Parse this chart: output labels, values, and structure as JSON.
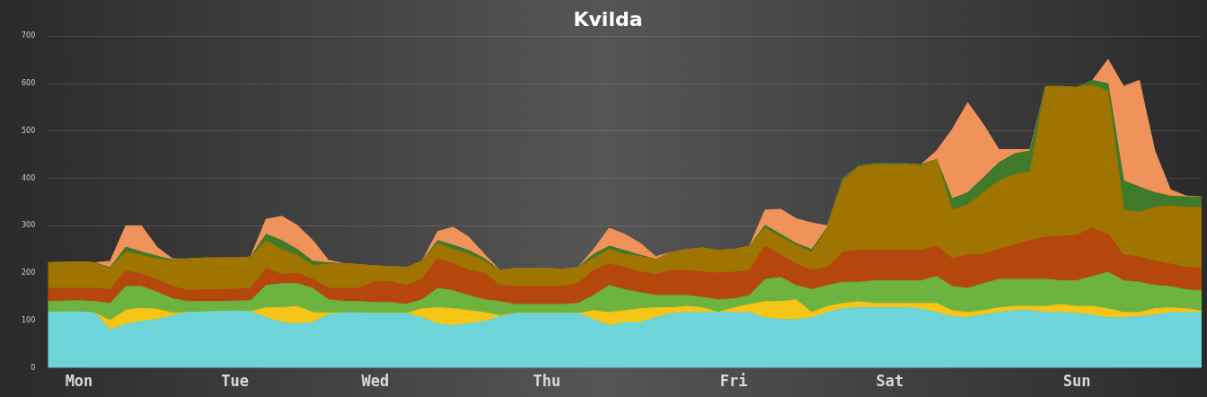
{
  "chart_data": {
    "type": "area",
    "title": "Kvilda",
    "stacked": true,
    "grid": "y",
    "legend": false,
    "marker": "none",
    "categories": [
      null,
      null,
      "Mon",
      null,
      null,
      null,
      null,
      null,
      null,
      null,
      null,
      null,
      "Tue",
      null,
      null,
      null,
      null,
      null,
      null,
      null,
      null,
      "Wed",
      null,
      null,
      null,
      null,
      null,
      null,
      null,
      null,
      null,
      null,
      "Thu",
      null,
      null,
      null,
      null,
      null,
      null,
      null,
      null,
      null,
      null,
      null,
      "Fri",
      null,
      null,
      null,
      null,
      null,
      null,
      null,
      null,
      null,
      "Sat",
      null,
      null,
      null,
      null,
      null,
      null,
      null,
      null,
      null,
      null,
      null,
      "Sun",
      null,
      null,
      null,
      null,
      null,
      null,
      null,
      null
    ],
    "ylim": [
      0,
      700
    ],
    "yticks": [
      0,
      100,
      200,
      300,
      400,
      500,
      600,
      700
    ],
    "series": [
      {
        "color": "#6dd5da",
        "values": [
          117,
          118,
          118,
          116,
          80,
          92,
          98,
          102,
          110,
          117,
          118,
          119,
          120,
          119,
          106,
          96,
          93,
          96,
          112,
          116,
          116,
          115,
          115,
          115,
          106,
          93,
          89,
          93,
          98,
          108,
          115,
          115,
          115,
          115,
          115,
          102,
          89,
          96,
          96,
          106,
          115,
          117,
          117,
          117,
          117,
          117,
          106,
          102,
          102,
          106,
          117,
          125,
          127,
          127,
          127,
          127,
          125,
          117,
          108,
          106,
          112,
          117,
          121,
          121,
          117,
          117,
          115,
          112,
          106,
          106,
          108,
          112,
          117,
          117,
          117
        ]
      },
      {
        "color": "#f5c518",
        "values": [
          0,
          0,
          0,
          0,
          20,
          30,
          28,
          22,
          6,
          0,
          0,
          0,
          0,
          0,
          21,
          31,
          37,
          21,
          4,
          0,
          0,
          0,
          0,
          0,
          19,
          34,
          36,
          28,
          19,
          2,
          0,
          0,
          0,
          0,
          0,
          19,
          28,
          25,
          29,
          21,
          12,
          13,
          10,
          0,
          10,
          17,
          34,
          38,
          42,
          11,
          13,
          11,
          13,
          9,
          9,
          9,
          11,
          19,
          13,
          11,
          9,
          10,
          9,
          9,
          13,
          17,
          15,
          18,
          19,
          11,
          9,
          13,
          10,
          8,
          3
        ]
      },
      {
        "color": "#6db33f",
        "values": [
          23,
          23,
          24,
          24,
          36,
          50,
          46,
          36,
          30,
          23,
          22,
          21,
          21,
          23,
          47,
          51,
          48,
          51,
          28,
          24,
          24,
          23,
          23,
          19,
          19,
          41,
          38,
          32,
          27,
          30,
          19,
          19,
          19,
          19,
          21,
          32,
          57,
          44,
          34,
          26,
          26,
          23,
          22,
          27,
          19,
          19,
          47,
          51,
          30,
          48,
          44,
          45,
          41,
          48,
          48,
          48,
          48,
          57,
          51,
          51,
          57,
          60,
          57,
          57,
          57,
          50,
          54,
          63,
          77,
          67,
          64,
          49,
          45,
          40,
          43
        ]
      },
      {
        "color": "#b5470c",
        "values": [
          28,
          27,
          26,
          28,
          29,
          33,
          26,
          26,
          26,
          23,
          25,
          25,
          25,
          25,
          36,
          19,
          22,
          19,
          24,
          28,
          28,
          44,
          44,
          40,
          43,
          63,
          56,
          53,
          56,
          34,
          38,
          38,
          38,
          38,
          42,
          53,
          45,
          47,
          43,
          44,
          53,
          53,
          53,
          56,
          56,
          53,
          70,
          47,
          45,
          41,
          38,
          63,
          67,
          64,
          64,
          64,
          64,
          64,
          59,
          70,
          62,
          63,
          72,
          82,
          89,
          94,
          96,
          102,
          80,
          54,
          53,
          51,
          47,
          47,
          47
        ]
      },
      {
        "color": "#a07400",
        "values": [
          54,
          55,
          56,
          54,
          45,
          40,
          40,
          44,
          54,
          67,
          67,
          67,
          66,
          67,
          59,
          53,
          38,
          29,
          51,
          52,
          50,
          33,
          32,
          38,
          38,
          32,
          31,
          34,
          25,
          32,
          38,
          38,
          38,
          36,
          34,
          25,
          31,
          28,
          33,
          32,
          38,
          44,
          51,
          48,
          48,
          51,
          38,
          38,
          40,
          38,
          83,
          151,
          176,
          181,
          181,
          181,
          179,
          182,
          102,
          106,
          130,
          145,
          149,
          145,
          318,
          316,
          312,
          302,
          302,
          95,
          95,
          114,
          123,
          127,
          129
        ]
      },
      {
        "color": "#3f7a2a",
        "values": [
          0,
          0,
          0,
          0,
          2,
          10,
          7,
          6,
          2,
          0,
          0,
          0,
          0,
          0,
          13,
          19,
          12,
          9,
          3,
          0,
          0,
          0,
          0,
          0,
          0,
          6,
          9,
          8,
          6,
          0,
          0,
          0,
          0,
          0,
          0,
          9,
          7,
          8,
          3,
          0,
          0,
          0,
          0,
          0,
          0,
          0,
          6,
          6,
          4,
          6,
          2,
          5,
          2,
          2,
          2,
          2,
          2,
          1,
          24,
          26,
          31,
          38,
          44,
          44,
          0,
          0,
          0,
          10,
          16,
          62,
          53,
          31,
          21,
          22,
          22
        ]
      },
      {
        "color": "#f0935a",
        "values": [
          0,
          0,
          0,
          0,
          13,
          45,
          55,
          19,
          2,
          0,
          0,
          0,
          0,
          0,
          32,
          51,
          51,
          44,
          5,
          0,
          0,
          0,
          0,
          0,
          0,
          19,
          38,
          28,
          9,
          0,
          0,
          0,
          0,
          0,
          0,
          10,
          38,
          34,
          25,
          6,
          0,
          0,
          0,
          0,
          0,
          0,
          32,
          53,
          52,
          56,
          3,
          0,
          0,
          0,
          0,
          0,
          0,
          18,
          146,
          190,
          113,
          28,
          9,
          3,
          0,
          0,
          0,
          0,
          51,
          199,
          225,
          88,
          13,
          2,
          0
        ]
      }
    ]
  }
}
